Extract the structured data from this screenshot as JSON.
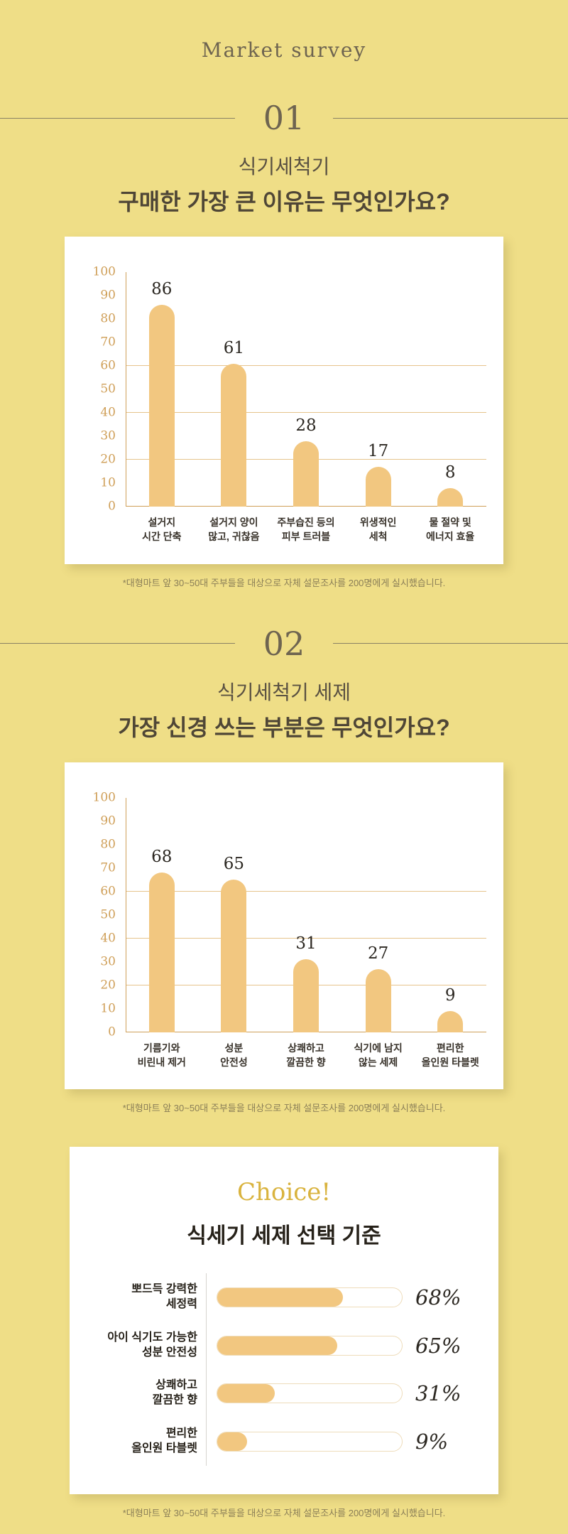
{
  "page": {
    "brand": "Market survey",
    "footnote": "*대형마트 앞 30~50대 주부들을 대상으로 자체 설문조사를 200명에게 실시했습니다.",
    "background_color": "#efde87"
  },
  "sections": [
    {
      "number": "01",
      "subtitle": "식기세척기",
      "question": "구매한 가장 큰 이유는 무엇인가요?"
    },
    {
      "number": "02",
      "subtitle": "식기세척기 세제",
      "question": "가장 신경 쓰는 부분은 무엇인가요?"
    }
  ],
  "choice": {
    "heading": "Choice!",
    "title": "식세기 세제 선택 기준"
  },
  "chart_data": [
    {
      "type": "bar",
      "title": "식기세척기 구매한 가장 큰 이유는 무엇인가요?",
      "categories": [
        [
          "설거지",
          "시간 단축"
        ],
        [
          "설거지 양이",
          "많고, 귀찮음"
        ],
        [
          "주부습진 등의",
          "피부 트러블"
        ],
        [
          "위생적인",
          "세척"
        ],
        [
          "물 절약 및",
          "에너지 효율"
        ]
      ],
      "values": [
        86,
        61,
        28,
        17,
        8
      ],
      "ylim": [
        0,
        100
      ],
      "yticks": [
        0,
        10,
        20,
        30,
        40,
        50,
        60,
        70,
        80,
        90,
        100
      ],
      "gridlines": [
        20,
        40,
        60
      ],
      "bar_color": "#f2c780",
      "grid": "horizontal",
      "legend": "none"
    },
    {
      "type": "bar",
      "title": "식기세척기 세제 가장 신경 쓰는 부분은 무엇인가요?",
      "categories": [
        [
          "기름기와",
          "비린내 제거"
        ],
        [
          "성분",
          "안전성"
        ],
        [
          "상쾌하고",
          "깔끔한 향"
        ],
        [
          "식기에 남지",
          "않는 세제"
        ],
        [
          "편리한",
          "올인원 타블렛"
        ]
      ],
      "values": [
        68,
        65,
        31,
        27,
        9
      ],
      "ylim": [
        0,
        100
      ],
      "yticks": [
        0,
        10,
        20,
        30,
        40,
        50,
        60,
        70,
        80,
        90,
        100
      ],
      "gridlines": [
        20,
        40,
        60
      ],
      "bar_color": "#f2c780",
      "grid": "horizontal",
      "legend": "none"
    },
    {
      "type": "bar-horizontal",
      "title": "식세기 세제 선택 기준",
      "categories": [
        [
          "뽀드득 강력한",
          "세정력"
        ],
        [
          "아이 식기도 가능한",
          "성분 안전성"
        ],
        [
          "상쾌하고",
          "깔끔한 향"
        ],
        [
          "편리한",
          "올인원 타블렛"
        ]
      ],
      "values": [
        68,
        65,
        31,
        9
      ],
      "unit": "%",
      "xlim": [
        0,
        100
      ],
      "bar_color": "#f2c780",
      "legend": "none"
    }
  ],
  "colors": {
    "background": "#efde87",
    "card": "#ffffff",
    "bar_fill": "#f2c780",
    "axis": "#cf9f58",
    "gridline": "#e6c48c",
    "heading_text": "#6e6450",
    "question_text": "#4f4636",
    "value_text": "#2c2822",
    "footnote_text": "#8a7e57",
    "choice_gold": "#d9b33e"
  }
}
